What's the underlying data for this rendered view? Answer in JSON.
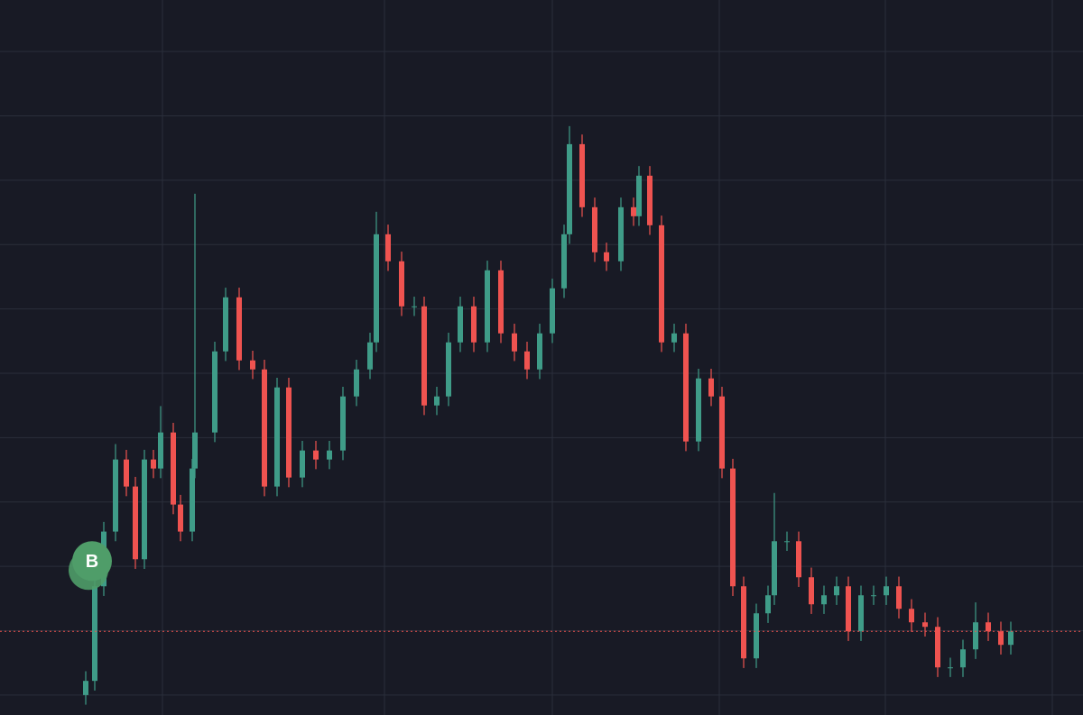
{
  "chart_data": {
    "type": "candlestick",
    "x": [
      9.5,
      10.5,
      11.5,
      12.8,
      14.0,
      15.0,
      16.0,
      17.0,
      17.8,
      19.2,
      20.0,
      21.3,
      21.6,
      23.8,
      25.0,
      26.5,
      28.0,
      29.3,
      30.7,
      32.0,
      33.5,
      35.0,
      36.5,
      38.0,
      39.5,
      41.0,
      41.7,
      43.0,
      44.5,
      45.9,
      47.0,
      48.4,
      49.7,
      51.0,
      52.5,
      54.0,
      55.5,
      57.0,
      58.4,
      59.8,
      61.2,
      62.5,
      63.1,
      64.5,
      65.9,
      67.2,
      68.8,
      70.2,
      70.8,
      72.0,
      73.3,
      74.7,
      76.0,
      77.4,
      78.8,
      80.0,
      81.2,
      82.4,
      83.8,
      85.1,
      85.8,
      87.2,
      88.5,
      89.9,
      91.3,
      92.7,
      94.0,
      95.4,
      96.8,
      98.2,
      99.6,
      101.0,
      102.5,
      103.9,
      105.3,
      106.7,
      108.1,
      109.5,
      110.9,
      112.0
    ],
    "open": [
      0.0,
      0.22,
      1.69,
      2.54,
      3.66,
      3.24,
      2.11,
      3.66,
      3.52,
      4.08,
      2.96,
      2.54,
      3.52,
      4.08,
      5.34,
      6.18,
      5.2,
      5.06,
      3.24,
      4.78,
      3.38,
      3.8,
      3.66,
      3.8,
      4.64,
      5.06,
      5.48,
      7.16,
      6.74,
      6.04,
      6.04,
      4.5,
      4.64,
      5.48,
      6.04,
      5.48,
      6.6,
      5.62,
      5.34,
      5.06,
      5.62,
      6.32,
      7.16,
      8.56,
      7.58,
      6.88,
      6.74,
      7.58,
      7.44,
      8.07,
      7.3,
      5.48,
      5.62,
      3.94,
      4.92,
      4.64,
      3.52,
      1.69,
      0.57,
      1.27,
      1.55,
      2.39,
      2.39,
      1.83,
      1.41,
      1.55,
      1.69,
      0.99,
      1.55,
      1.55,
      1.69,
      1.34,
      1.13,
      1.06,
      0.43,
      0.43,
      0.71,
      1.13,
      0.99,
      0.78
    ],
    "high": [
      0.37,
      1.84,
      2.69,
      3.9,
      3.81,
      3.39,
      3.81,
      3.81,
      4.49,
      4.23,
      3.11,
      3.67,
      7.79,
      5.49,
      6.33,
      6.33,
      5.35,
      5.21,
      4.93,
      4.93,
      3.95,
      3.95,
      3.95,
      4.79,
      5.21,
      5.63,
      7.51,
      7.31,
      6.89,
      6.19,
      6.19,
      4.79,
      5.63,
      6.19,
      6.19,
      6.75,
      6.75,
      5.77,
      5.49,
      5.77,
      6.47,
      7.31,
      8.84,
      8.71,
      7.73,
      7.03,
      7.73,
      7.73,
      8.22,
      8.22,
      7.45,
      5.77,
      5.77,
      5.07,
      5.07,
      4.79,
      3.67,
      1.84,
      1.42,
      1.7,
      3.14,
      2.54,
      2.54,
      1.98,
      1.7,
      1.84,
      1.84,
      1.7,
      1.7,
      1.84,
      1.84,
      1.49,
      1.28,
      1.21,
      0.58,
      0.86,
      1.44,
      1.28,
      1.14,
      1.14
    ],
    "low": [
      -0.15,
      0.07,
      1.54,
      2.39,
      3.09,
      1.96,
      1.96,
      3.37,
      3.37,
      2.81,
      2.39,
      2.39,
      3.37,
      3.93,
      5.19,
      5.05,
      4.91,
      3.09,
      3.09,
      3.23,
      3.23,
      3.51,
      3.51,
      3.65,
      4.49,
      4.91,
      5.33,
      6.59,
      5.89,
      5.89,
      4.35,
      4.35,
      4.49,
      5.33,
      5.33,
      5.33,
      5.47,
      5.19,
      4.91,
      4.91,
      5.47,
      6.17,
      7.01,
      7.43,
      6.73,
      6.59,
      6.59,
      7.29,
      7.29,
      7.15,
      5.33,
      5.33,
      3.79,
      3.79,
      4.49,
      3.37,
      1.54,
      0.42,
      0.42,
      1.12,
      1.4,
      2.24,
      1.68,
      1.26,
      1.26,
      1.4,
      0.84,
      0.84,
      1.4,
      1.4,
      1.19,
      0.98,
      0.91,
      0.28,
      0.28,
      0.28,
      0.56,
      0.84,
      0.63,
      0.63
    ],
    "close": [
      0.22,
      1.69,
      2.54,
      3.66,
      3.24,
      2.11,
      3.66,
      3.52,
      4.08,
      2.96,
      2.54,
      3.52,
      4.08,
      5.34,
      6.18,
      5.2,
      5.06,
      3.24,
      4.78,
      3.38,
      3.8,
      3.66,
      3.8,
      4.64,
      5.06,
      5.48,
      7.16,
      6.74,
      6.04,
      6.04,
      4.5,
      4.64,
      5.48,
      6.04,
      5.48,
      6.6,
      5.62,
      5.34,
      5.06,
      5.62,
      6.32,
      7.16,
      8.56,
      7.58,
      6.88,
      6.74,
      7.58,
      7.44,
      8.07,
      7.3,
      5.48,
      5.62,
      3.94,
      4.92,
      4.64,
      3.52,
      1.69,
      0.57,
      1.27,
      1.55,
      2.39,
      2.39,
      1.83,
      1.41,
      1.55,
      1.69,
      0.99,
      1.55,
      1.55,
      1.69,
      1.34,
      1.13,
      1.06,
      0.43,
      0.43,
      0.71,
      1.13,
      0.99,
      0.78,
      0.99
    ],
    "up_color": "#3f9c88",
    "down_color": "#ef5350",
    "xlim": [
      0,
      120
    ],
    "xticks": [
      18,
      42.6,
      61.2,
      79.7,
      98.1,
      116.6
    ],
    "ylim": [
      -0.31,
      10.8
    ],
    "yticks": [
      0,
      1,
      2,
      3,
      4,
      5,
      6,
      7,
      8,
      9,
      10
    ],
    "grid": true,
    "last_price": 0.99,
    "last_price_color": "#ef5350",
    "markers": [
      {
        "x": 10.2,
        "text": "B",
        "color": "#4f9d69"
      }
    ]
  }
}
